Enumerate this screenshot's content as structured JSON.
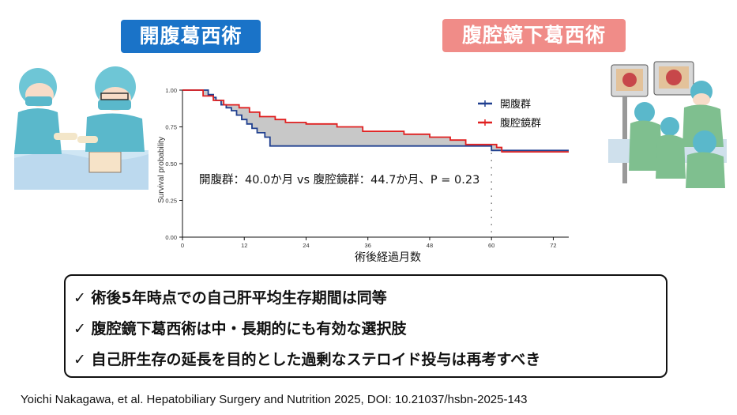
{
  "badges": {
    "left": "開腹葛西術",
    "right": "腹腔鏡下葛西術"
  },
  "chart_data": {
    "type": "line",
    "subtype": "kaplan-meier",
    "xlabel": "術後経過月数",
    "ylabel": "Survival probability",
    "xlim": [
      0,
      75
    ],
    "ylim": [
      0,
      1.0
    ],
    "x_ticks": [
      0,
      12,
      24,
      36,
      48,
      60,
      72
    ],
    "y_ticks": [
      0.0,
      0.25,
      0.5,
      0.75,
      1.0
    ],
    "y_tick_labels": [
      "0.00",
      "0.25",
      "0.50",
      "0.75",
      "1.00"
    ],
    "legend_position": "top-right",
    "annotation": "開腹群：40.0か月  vs  腹腔鏡群：44.7か月、P = 0.23",
    "reference_line_x": 60,
    "series": [
      {
        "name": "開腹群",
        "color": "#1f3f8f",
        "x": [
          0,
          4,
          5,
          6,
          6.5,
          7.5,
          8.5,
          9.5,
          10.5,
          11.5,
          12.5,
          13.5,
          14.5,
          16,
          17,
          59,
          60,
          75
        ],
        "y": [
          1.0,
          1.0,
          0.97,
          0.95,
          0.93,
          0.9,
          0.88,
          0.86,
          0.83,
          0.8,
          0.77,
          0.74,
          0.71,
          0.68,
          0.62,
          0.62,
          0.59,
          0.59
        ]
      },
      {
        "name": "腹腔鏡群",
        "color": "#e02020",
        "x": [
          0,
          3,
          4,
          6,
          8,
          11,
          13,
          15,
          18,
          20,
          24,
          30,
          35,
          43,
          48,
          52,
          55,
          61,
          62,
          75
        ],
        "y": [
          1.0,
          1.0,
          0.96,
          0.93,
          0.9,
          0.88,
          0.85,
          0.82,
          0.8,
          0.78,
          0.77,
          0.75,
          0.72,
          0.7,
          0.68,
          0.66,
          0.63,
          0.61,
          0.58,
          0.58
        ]
      }
    ]
  },
  "summary": {
    "check": "✓",
    "lines": [
      "術後5年時点での自己肝平均生存期間は同等",
      "腹腔鏡下葛西術は中・長期的にも有効な選択肢",
      "自己肝生存の延長を目的とした過剰なステロイド投与は再考すべき"
    ]
  },
  "citation": "Yoichi Nakagawa, et al. Hepatobiliary Surgery and Nutrition 2025, DOI: 10.21037/hsbn-2025-143"
}
